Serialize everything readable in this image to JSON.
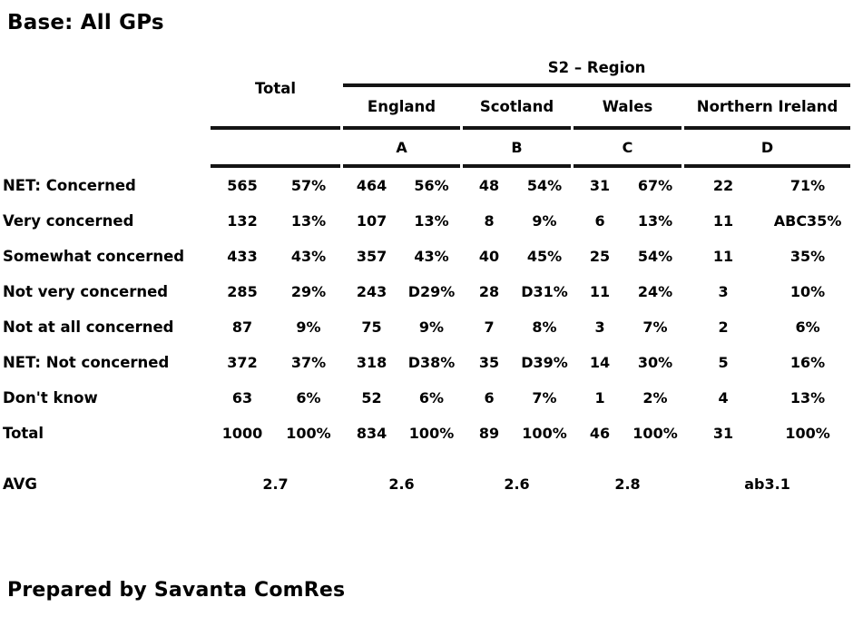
{
  "page": {
    "title": "Base: All GPs",
    "footer": "Prepared by Savanta ComRes"
  },
  "table": {
    "banner_title": "S2 – Region",
    "total_header": "Total",
    "region_headers": [
      "England",
      "Scotland",
      "Wales",
      "Northern Ireland"
    ],
    "sig_letters": [
      "A",
      "B",
      "C",
      "D"
    ],
    "column_groups": [
      "Total",
      "England",
      "Scotland",
      "Wales",
      "Northern Ireland"
    ],
    "subcolumns_per_group": [
      "count",
      "percent"
    ],
    "rows": [
      {
        "label": "NET: Concerned",
        "cells": [
          "565",
          "57%",
          "464",
          "56%",
          "48",
          "54%",
          "31",
          "67%",
          "22",
          "71%"
        ]
      },
      {
        "label": "Very concerned",
        "cells": [
          "132",
          "13%",
          "107",
          "13%",
          "8",
          "9%",
          "6",
          "13%",
          "11",
          "ABC35%"
        ]
      },
      {
        "label": "Somewhat concerned",
        "cells": [
          "433",
          "43%",
          "357",
          "43%",
          "40",
          "45%",
          "25",
          "54%",
          "11",
          "35%"
        ]
      },
      {
        "label": "Not very concerned",
        "cells": [
          "285",
          "29%",
          "243",
          "D29%",
          "28",
          "D31%",
          "11",
          "24%",
          "3",
          "10%"
        ]
      },
      {
        "label": "Not at all concerned",
        "cells": [
          "87",
          "9%",
          "75",
          "9%",
          "7",
          "8%",
          "3",
          "7%",
          "2",
          "6%"
        ]
      },
      {
        "label": "NET: Not concerned",
        "cells": [
          "372",
          "37%",
          "318",
          "D38%",
          "35",
          "D39%",
          "14",
          "30%",
          "5",
          "16%"
        ]
      },
      {
        "label": "Don't know",
        "cells": [
          "63",
          "6%",
          "52",
          "6%",
          "6",
          "7%",
          "1",
          "2%",
          "4",
          "13%"
        ]
      },
      {
        "label": "Total",
        "cells": [
          "1000",
          "100%",
          "834",
          "100%",
          "89",
          "100%",
          "46",
          "100%",
          "31",
          "100%"
        ]
      }
    ],
    "avg_row": {
      "label": "AVG",
      "values": [
        "2.7",
        "2.6",
        "2.6",
        "2.8",
        "ab3.1"
      ]
    }
  }
}
